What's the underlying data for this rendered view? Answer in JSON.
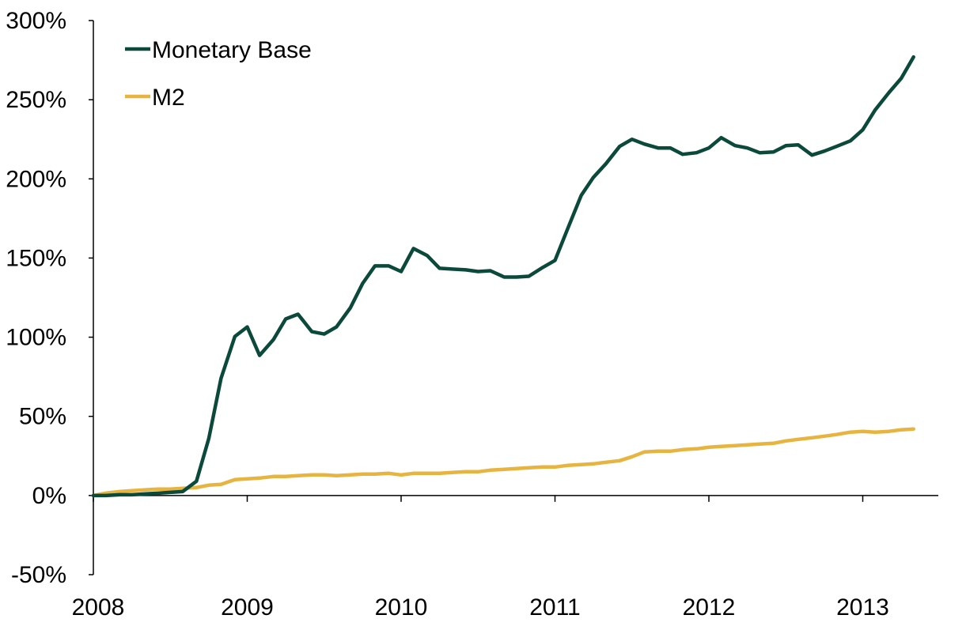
{
  "chart_data": {
    "type": "line",
    "title": "",
    "xlabel": "",
    "ylabel": "",
    "xlim": [
      2008.0,
      2013.7
    ],
    "ylim": [
      -50,
      300
    ],
    "x_ticks": [
      {
        "value": 2008,
        "label": "2008"
      },
      {
        "value": 2009,
        "label": "2009"
      },
      {
        "value": 2010,
        "label": "2010"
      },
      {
        "value": 2011,
        "label": "2011"
      },
      {
        "value": 2012,
        "label": "2012"
      },
      {
        "value": 2013,
        "label": "2013"
      }
    ],
    "y_ticks": [
      {
        "value": 300,
        "label": "300%"
      },
      {
        "value": 250,
        "label": "250%"
      },
      {
        "value": 200,
        "label": "200%"
      },
      {
        "value": 150,
        "label": "150%"
      },
      {
        "value": 100,
        "label": "100%"
      },
      {
        "value": 50,
        "label": "50%"
      },
      {
        "value": 0,
        "label": "0%"
      },
      {
        "value": -50,
        "label": "-50%"
      }
    ],
    "grid": false,
    "legend_position": "top-left",
    "series": [
      {
        "name": "Monetary Base",
        "color": "#0b4a3a",
        "points": [
          [
            2008.0,
            0
          ],
          [
            2008.08,
            0
          ],
          [
            2008.17,
            0.5
          ],
          [
            2008.25,
            0.5
          ],
          [
            2008.33,
            1
          ],
          [
            2008.42,
            1.5
          ],
          [
            2008.5,
            2
          ],
          [
            2008.58,
            2.5
          ],
          [
            2008.67,
            9
          ],
          [
            2008.75,
            36
          ],
          [
            2008.83,
            74
          ],
          [
            2008.92,
            100.5
          ],
          [
            2009.0,
            106.5
          ],
          [
            2009.08,
            88.5
          ],
          [
            2009.17,
            98.5
          ],
          [
            2009.25,
            111.5
          ],
          [
            2009.33,
            114.5
          ],
          [
            2009.42,
            103.5
          ],
          [
            2009.5,
            102
          ],
          [
            2009.58,
            106.5
          ],
          [
            2009.67,
            118.5
          ],
          [
            2009.75,
            134
          ],
          [
            2009.83,
            145
          ],
          [
            2009.92,
            145
          ],
          [
            2010.0,
            141.5
          ],
          [
            2010.08,
            156
          ],
          [
            2010.17,
            151.5
          ],
          [
            2010.25,
            143.5
          ],
          [
            2010.33,
            143
          ],
          [
            2010.42,
            142.5
          ],
          [
            2010.5,
            141.5
          ],
          [
            2010.58,
            142
          ],
          [
            2010.67,
            138
          ],
          [
            2010.75,
            138
          ],
          [
            2010.83,
            138.5
          ],
          [
            2010.92,
            144
          ],
          [
            2011.0,
            148.5
          ],
          [
            2011.08,
            168
          ],
          [
            2011.17,
            189.5
          ],
          [
            2011.25,
            201
          ],
          [
            2011.33,
            209.5
          ],
          [
            2011.42,
            220.5
          ],
          [
            2011.5,
            225
          ],
          [
            2011.58,
            222
          ],
          [
            2011.67,
            219.5
          ],
          [
            2011.75,
            219.5
          ],
          [
            2011.83,
            215.5
          ],
          [
            2011.92,
            216.5
          ],
          [
            2012.0,
            219.5
          ],
          [
            2012.08,
            226
          ],
          [
            2012.17,
            221
          ],
          [
            2012.25,
            219.5
          ],
          [
            2012.33,
            216.5
          ],
          [
            2012.42,
            217
          ],
          [
            2012.5,
            221
          ],
          [
            2012.58,
            221.5
          ],
          [
            2012.67,
            215
          ],
          [
            2012.75,
            217.5
          ],
          [
            2012.83,
            220.5
          ],
          [
            2012.92,
            224
          ],
          [
            2013.0,
            231
          ],
          [
            2013.08,
            243.5
          ],
          [
            2013.17,
            254.5
          ],
          [
            2013.25,
            263.5
          ],
          [
            2013.33,
            277
          ]
        ]
      },
      {
        "name": "M2",
        "color": "#e8b440",
        "points": [
          [
            2008.0,
            0
          ],
          [
            2008.08,
            1.5
          ],
          [
            2008.17,
            2.5
          ],
          [
            2008.25,
            3
          ],
          [
            2008.33,
            3.5
          ],
          [
            2008.42,
            4
          ],
          [
            2008.5,
            4
          ],
          [
            2008.58,
            4.5
          ],
          [
            2008.67,
            5
          ],
          [
            2008.75,
            6.5
          ],
          [
            2008.83,
            7
          ],
          [
            2008.92,
            10
          ],
          [
            2009.0,
            10.5
          ],
          [
            2009.08,
            11
          ],
          [
            2009.17,
            12
          ],
          [
            2009.25,
            12
          ],
          [
            2009.33,
            12.5
          ],
          [
            2009.42,
            13
          ],
          [
            2009.5,
            13
          ],
          [
            2009.58,
            12.5
          ],
          [
            2009.67,
            13
          ],
          [
            2009.75,
            13.5
          ],
          [
            2009.83,
            13.5
          ],
          [
            2009.92,
            14
          ],
          [
            2010.0,
            13
          ],
          [
            2010.08,
            14
          ],
          [
            2010.17,
            14
          ],
          [
            2010.25,
            14
          ],
          [
            2010.33,
            14.5
          ],
          [
            2010.42,
            15
          ],
          [
            2010.5,
            15
          ],
          [
            2010.58,
            16
          ],
          [
            2010.67,
            16.5
          ],
          [
            2010.75,
            17
          ],
          [
            2010.83,
            17.5
          ],
          [
            2010.92,
            18
          ],
          [
            2011.0,
            18
          ],
          [
            2011.08,
            19
          ],
          [
            2011.17,
            19.5
          ],
          [
            2011.25,
            20
          ],
          [
            2011.33,
            21
          ],
          [
            2011.42,
            22
          ],
          [
            2011.5,
            24.5
          ],
          [
            2011.58,
            27.5
          ],
          [
            2011.67,
            28
          ],
          [
            2011.75,
            28
          ],
          [
            2011.83,
            29
          ],
          [
            2011.92,
            29.5
          ],
          [
            2012.0,
            30.5
          ],
          [
            2012.08,
            31
          ],
          [
            2012.17,
            31.5
          ],
          [
            2012.25,
            32
          ],
          [
            2012.33,
            32.5
          ],
          [
            2012.42,
            33
          ],
          [
            2012.5,
            34.5
          ],
          [
            2012.58,
            35.5
          ],
          [
            2012.67,
            36.5
          ],
          [
            2012.75,
            37.5
          ],
          [
            2012.83,
            38.5
          ],
          [
            2012.92,
            40
          ],
          [
            2013.0,
            40.5
          ],
          [
            2013.08,
            40
          ],
          [
            2013.17,
            40.5
          ],
          [
            2013.25,
            41.5
          ],
          [
            2013.33,
            42
          ]
        ]
      }
    ]
  }
}
